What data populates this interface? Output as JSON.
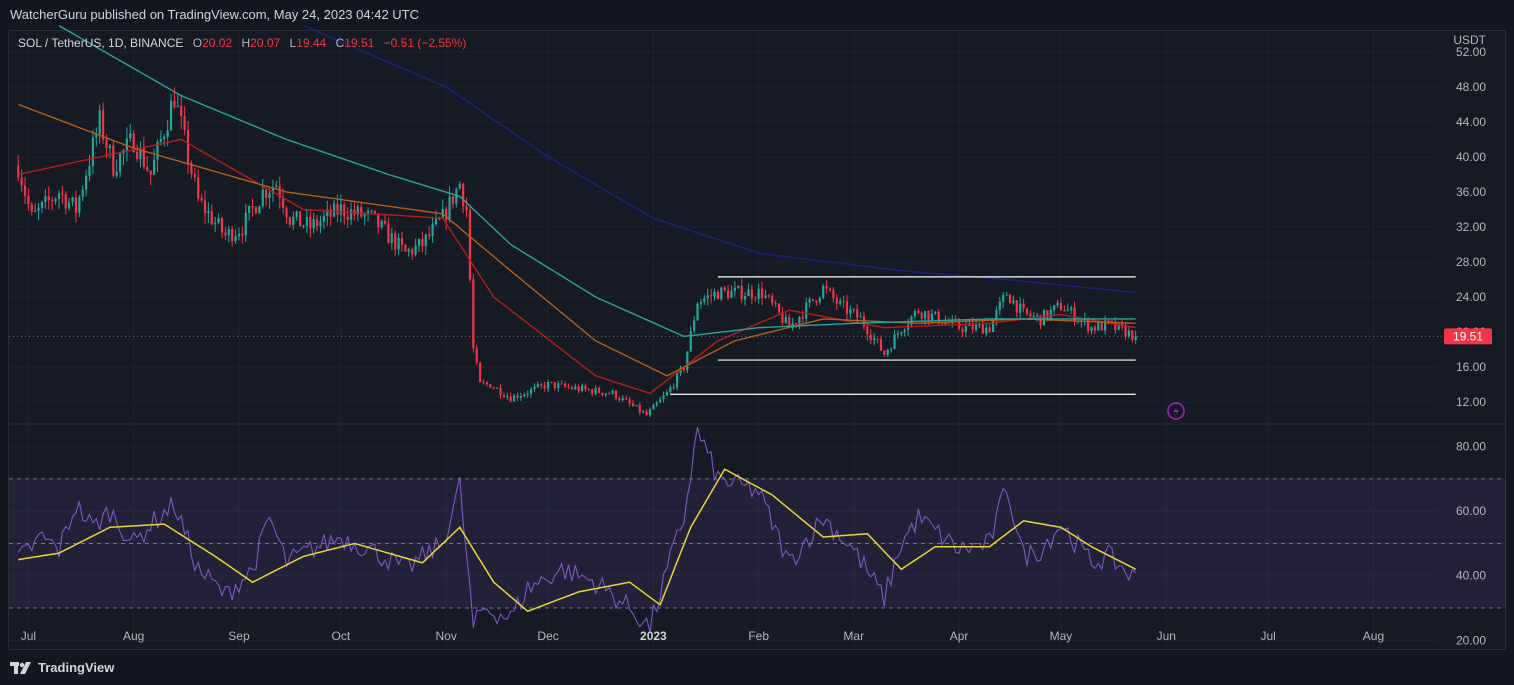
{
  "header": {
    "publisher_line": "WatcherGuru published on TradingView.com, May 24, 2023 04:42 UTC"
  },
  "legend": {
    "symbol": "SOL / TetherUS, 1D, BINANCE",
    "o_label": "O",
    "o_value": "20.02",
    "h_label": "H",
    "h_value": "20.07",
    "l_label": "L",
    "l_value": "19.44",
    "c_label": "C",
    "c_value": "19.51",
    "change": "−0.51 (−2.55%)"
  },
  "brand": {
    "name": "TradingView"
  },
  "colors": {
    "up": "#26a69a",
    "down": "#f23645",
    "ema_red": "#b71c1c",
    "ema_orange": "#b35f1c",
    "ema_teal": "#26a69a",
    "ema_navy": "#1a237e",
    "rsi": "#7e57c2",
    "rsi_ma": "#e8d535",
    "price_tag": "#f23645"
  },
  "chart_data": [
    {
      "type": "candlestick",
      "title": "",
      "currency_label": "USDT",
      "ylim": [
        9.5,
        54.5
      ],
      "y_ticks": [
        "52.00",
        "48.00",
        "44.00",
        "40.00",
        "36.00",
        "32.00",
        "28.00",
        "24.00",
        "20.00",
        "16.00",
        "12.00"
      ],
      "x_labels": [
        "Jul",
        "Aug",
        "Sep",
        "Oct",
        "Nov",
        "Dec",
        "2023",
        "Feb",
        "Mar",
        "Apr",
        "May",
        "Jun",
        "Jul",
        "Aug"
      ],
      "last_price": "19.51",
      "price_keypoints_date_close": [
        [
          "2022-06-28",
          39
        ],
        [
          "2022-07-02",
          33
        ],
        [
          "2022-07-10",
          36
        ],
        [
          "2022-07-15",
          34
        ],
        [
          "2022-07-22",
          44
        ],
        [
          "2022-07-26",
          39
        ],
        [
          "2022-08-01",
          42
        ],
        [
          "2022-08-06",
          38
        ],
        [
          "2022-08-13",
          47
        ],
        [
          "2022-08-17",
          40
        ],
        [
          "2022-08-20",
          35
        ],
        [
          "2022-08-28",
          31
        ],
        [
          "2022-09-02",
          32
        ],
        [
          "2022-09-08",
          36
        ],
        [
          "2022-09-12",
          37
        ],
        [
          "2022-09-16",
          33
        ],
        [
          "2022-09-22",
          32
        ],
        [
          "2022-10-01",
          34
        ],
        [
          "2022-10-10",
          33
        ],
        [
          "2022-10-20",
          29
        ],
        [
          "2022-10-25",
          30
        ],
        [
          "2022-10-31",
          33
        ],
        [
          "2022-11-05",
          37
        ],
        [
          "2022-11-07",
          34
        ],
        [
          "2022-11-09",
          18
        ],
        [
          "2022-11-11",
          14
        ],
        [
          "2022-11-14",
          14
        ],
        [
          "2022-11-20",
          12.5
        ],
        [
          "2022-12-01",
          14
        ],
        [
          "2022-12-10",
          13.5
        ],
        [
          "2022-12-20",
          13
        ],
        [
          "2022-12-30",
          10.5
        ],
        [
          "2023-01-05",
          13
        ],
        [
          "2023-01-10",
          16
        ],
        [
          "2023-01-14",
          23.5
        ],
        [
          "2023-01-20",
          24.5
        ],
        [
          "2023-02-02",
          24.5
        ],
        [
          "2023-02-10",
          20.5
        ],
        [
          "2023-02-20",
          25
        ],
        [
          "2023-02-25",
          23
        ],
        [
          "2023-03-03",
          21.5
        ],
        [
          "2023-03-10",
          17.5
        ],
        [
          "2023-03-15",
          20.5
        ],
        [
          "2023-03-20",
          22.5
        ],
        [
          "2023-04-01",
          20.5
        ],
        [
          "2023-04-10",
          20.5
        ],
        [
          "2023-04-15",
          24.5
        ],
        [
          "2023-04-20",
          22
        ],
        [
          "2023-04-25",
          21.5
        ],
        [
          "2023-05-01",
          23
        ],
        [
          "2023-05-10",
          20.5
        ],
        [
          "2023-05-15",
          20.8
        ],
        [
          "2023-05-23",
          19.51
        ]
      ],
      "moving_averages": [
        {
          "color": "#b71c1c",
          "points": [
            [
              "2022-06-28",
              38
            ],
            [
              "2022-08-15",
              42
            ],
            [
              "2022-09-20",
              34
            ],
            [
              "2022-10-31",
              33
            ],
            [
              "2022-11-15",
              24
            ],
            [
              "2022-12-15",
              15
            ],
            [
              "2022-12-31",
              13
            ],
            [
              "2023-01-20",
              19
            ],
            [
              "2023-02-10",
              22.5
            ],
            [
              "2023-03-10",
              20.5
            ],
            [
              "2023-04-10",
              21
            ],
            [
              "2023-05-01",
              22
            ],
            [
              "2023-05-23",
              20.5
            ]
          ]
        },
        {
          "color": "#b35f1c",
          "points": [
            [
              "2022-06-28",
              46
            ],
            [
              "2022-08-01",
              41
            ],
            [
              "2022-09-15",
              36
            ],
            [
              "2022-10-31",
              33.5
            ],
            [
              "2022-11-20",
              27
            ],
            [
              "2022-12-15",
              19
            ],
            [
              "2023-01-05",
              15
            ],
            [
              "2023-01-25",
              19
            ],
            [
              "2023-02-20",
              21.5
            ],
            [
              "2023-03-20",
              21
            ],
            [
              "2023-04-20",
              21.5
            ],
            [
              "2023-05-23",
              21
            ]
          ]
        },
        {
          "color": "#26a69a",
          "points": [
            [
              "2022-07-10",
              55
            ],
            [
              "2022-08-15",
              47
            ],
            [
              "2022-09-15",
              42
            ],
            [
              "2022-10-15",
              38
            ],
            [
              "2022-11-05",
              35.5
            ],
            [
              "2022-11-20",
              30
            ],
            [
              "2022-12-15",
              24
            ],
            [
              "2023-01-10",
              19.5
            ],
            [
              "2023-02-01",
              20.5
            ],
            [
              "2023-03-01",
              21
            ],
            [
              "2023-04-10",
              21.5
            ],
            [
              "2023-05-23",
              21.5
            ]
          ]
        },
        {
          "color": "#1a237e",
          "points": [
            [
              "2022-09-20",
              55
            ],
            [
              "2022-11-01",
              48
            ],
            [
              "2022-12-01",
              40
            ],
            [
              "2023-01-01",
              33
            ],
            [
              "2023-02-01",
              29
            ],
            [
              "2023-03-15",
              27
            ],
            [
              "2023-04-15",
              26
            ],
            [
              "2023-05-23",
              24.5
            ]
          ]
        }
      ],
      "horizontal_levels": [
        {
          "from": "2023-01-20",
          "to": "2023-05-23",
          "y": 26.3
        },
        {
          "from": "2023-01-20",
          "to": "2023-05-23",
          "y": 16.8
        },
        {
          "from": "2023-01-06",
          "to": "2023-05-23",
          "y": 12.9
        }
      ]
    },
    {
      "type": "line",
      "title": "",
      "ylim": [
        17,
        87
      ],
      "y_ticks": [
        "80.00",
        "60.00",
        "40.00",
        "20.00"
      ],
      "overbought": 70,
      "middle": 50,
      "oversold": 30,
      "series": [
        {
          "points": [
            [
              "2022-06-28",
              45
            ],
            [
              "2022-07-05",
              52
            ],
            [
              "2022-07-10",
              48
            ],
            [
              "2022-07-15",
              62
            ],
            [
              "2022-07-20",
              55
            ],
            [
              "2022-07-25",
              60
            ],
            [
              "2022-08-01",
              50
            ],
            [
              "2022-08-06",
              56
            ],
            [
              "2022-08-13",
              62
            ],
            [
              "2022-08-20",
              42
            ],
            [
              "2022-08-28",
              34
            ],
            [
              "2022-09-05",
              42
            ],
            [
              "2022-09-10",
              58
            ],
            [
              "2022-09-15",
              44
            ],
            [
              "2022-09-22",
              48
            ],
            [
              "2022-10-01",
              52
            ],
            [
              "2022-10-10",
              48
            ],
            [
              "2022-10-20",
              42
            ],
            [
              "2022-10-31",
              50
            ],
            [
              "2022-11-05",
              68
            ],
            [
              "2022-11-09",
              24
            ],
            [
              "2022-11-12",
              30
            ],
            [
              "2022-11-20",
              27
            ],
            [
              "2022-11-25",
              36
            ],
            [
              "2022-12-05",
              42
            ],
            [
              "2022-12-15",
              38
            ],
            [
              "2022-12-25",
              30
            ],
            [
              "2022-12-31",
              24
            ],
            [
              "2023-01-06",
              45
            ],
            [
              "2023-01-10",
              58
            ],
            [
              "2023-01-14",
              85
            ],
            [
              "2023-01-20",
              70
            ],
            [
              "2023-02-01",
              66
            ],
            [
              "2023-02-10",
              44
            ],
            [
              "2023-02-20",
              58
            ],
            [
              "2023-03-01",
              48
            ],
            [
              "2023-03-10",
              33
            ],
            [
              "2023-03-15",
              50
            ],
            [
              "2023-03-20",
              58
            ],
            [
              "2023-04-01",
              48
            ],
            [
              "2023-04-10",
              50
            ],
            [
              "2023-04-15",
              68
            ],
            [
              "2023-04-20",
              46
            ],
            [
              "2023-04-25",
              48
            ],
            [
              "2023-05-01",
              56
            ],
            [
              "2023-05-10",
              44
            ],
            [
              "2023-05-15",
              46
            ],
            [
              "2023-05-23",
              39
            ]
          ]
        },
        {
          "points": [
            [
              "2022-06-28",
              45
            ],
            [
              "2022-07-10",
              47
            ],
            [
              "2022-07-25",
              55
            ],
            [
              "2022-08-10",
              56
            ],
            [
              "2022-08-25",
              46
            ],
            [
              "2022-09-05",
              38
            ],
            [
              "2022-09-20",
              46
            ],
            [
              "2022-10-05",
              50
            ],
            [
              "2022-10-25",
              44
            ],
            [
              "2022-11-05",
              55
            ],
            [
              "2022-11-15",
              38
            ],
            [
              "2022-11-25",
              29
            ],
            [
              "2022-12-10",
              35
            ],
            [
              "2022-12-25",
              38
            ],
            [
              "2023-01-03",
              31
            ],
            [
              "2023-01-12",
              55
            ],
            [
              "2023-01-22",
              73
            ],
            [
              "2023-02-05",
              65
            ],
            [
              "2023-02-20",
              52
            ],
            [
              "2023-03-05",
              53
            ],
            [
              "2023-03-15",
              42
            ],
            [
              "2023-03-25",
              49
            ],
            [
              "2023-04-10",
              49
            ],
            [
              "2023-04-20",
              57
            ],
            [
              "2023-05-01",
              55
            ],
            [
              "2023-05-10",
              49
            ],
            [
              "2023-05-23",
              42
            ]
          ]
        }
      ]
    }
  ]
}
